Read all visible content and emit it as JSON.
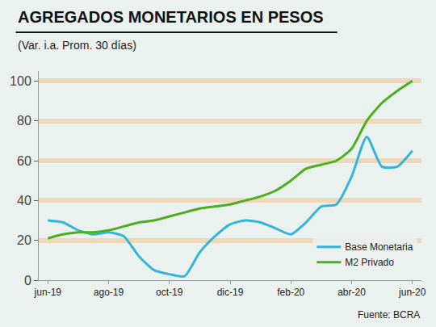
{
  "chart_data": {
    "type": "line",
    "title": "AGREGADOS MONETARIOS EN PESOS",
    "subtitle": "(Var. i.a. Prom. 30 días)",
    "source": "Fuente: BCRA",
    "categories": [
      "jun-19",
      null,
      null,
      null,
      "ago-19",
      null,
      null,
      null,
      "oct-19",
      null,
      null,
      null,
      "dic-19",
      null,
      null,
      null,
      "feb-20",
      null,
      null,
      null,
      "abr-20",
      null,
      null,
      null,
      "jun-20"
    ],
    "series": [
      {
        "name": "Base Monetaria",
        "color": "#35b6d6",
        "values": [
          30,
          29,
          25,
          23,
          24,
          22,
          12,
          5,
          3,
          2,
          14,
          22,
          28,
          30,
          29,
          26,
          23,
          29,
          37,
          38,
          52,
          72,
          57,
          57,
          65
        ]
      },
      {
        "name": "M2 Privado",
        "color": "#4caf1f",
        "values": [
          21,
          23,
          24,
          24,
          25,
          27,
          29,
          30,
          32,
          34,
          36,
          37,
          38,
          40,
          42,
          45,
          50,
          56,
          58,
          60,
          66,
          80,
          89,
          95,
          100
        ]
      }
    ],
    "ylim": [
      0,
      105
    ],
    "yticks": [
      0,
      20,
      40,
      60,
      80,
      100
    ],
    "grid": true,
    "legend": "lower right"
  }
}
